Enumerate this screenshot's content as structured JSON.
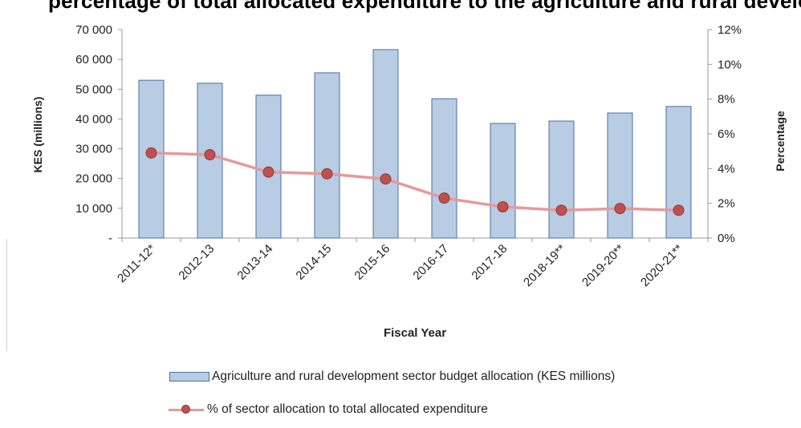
{
  "chart_data": {
    "type": "bar",
    "title": "percentage of total allocated expenditure to the agriculture and rural development sector budget (",
    "xlabel": "Fiscal Year",
    "ylabel": "KES (millions)",
    "y2label": "Percentage",
    "categories": [
      "2011-12*",
      "2012-13",
      "2013-14",
      "2014-15",
      "2015-16",
      "2016-17",
      "2017-18",
      "2018-19**",
      "2019-20**",
      "2020-21**"
    ],
    "ylim": [
      0,
      70000
    ],
    "y_ticks": [
      "-",
      "10 000",
      "20 000",
      "30 000",
      "40 000",
      "50 000",
      "60 000",
      "70 000"
    ],
    "y2lim": [
      0,
      12
    ],
    "y2_ticks": [
      "0%",
      "2%",
      "4%",
      "6%",
      "8%",
      "10%",
      "12%"
    ],
    "series": [
      {
        "name": "Agriculture and rural development sector budget allocation (KES millions)",
        "type": "bar",
        "axis": "left",
        "color": "#b8cce4",
        "border_color": "#4a6fa5",
        "values": [
          53000,
          52000,
          48000,
          55500,
          63300,
          46800,
          38500,
          39300,
          42000,
          44200
        ]
      },
      {
        "name": "% of sector allocation to total allocated expenditure",
        "type": "line",
        "axis": "right",
        "color": "#e49a99",
        "marker_color": "#c0504d",
        "values": [
          4.9,
          4.8,
          3.8,
          3.7,
          3.4,
          2.3,
          1.8,
          1.6,
          1.7,
          1.6
        ]
      }
    ],
    "grid": false,
    "legend_position": "bottom"
  }
}
